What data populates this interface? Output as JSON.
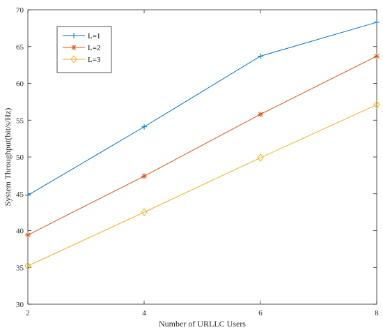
{
  "chart_data": {
    "type": "line",
    "xlabel": "Number of URLLC Users",
    "ylabel": "System Throughput(bit/s/Hz)",
    "x": [
      2,
      4,
      6,
      8
    ],
    "xlim": [
      2,
      8
    ],
    "ylim": [
      30,
      70
    ],
    "xticks": [
      "2",
      "4",
      "6",
      "8"
    ],
    "yticks": [
      "30",
      "35",
      "40",
      "45",
      "50",
      "55",
      "60",
      "65",
      "70"
    ],
    "grid": false,
    "legend_position": "top-left",
    "series": [
      {
        "name": "L=1",
        "values": [
          44.8,
          54.1,
          63.7,
          68.3
        ],
        "color": "#0072BD",
        "marker": "plus"
      },
      {
        "name": "L=2",
        "values": [
          39.4,
          47.4,
          55.8,
          63.7
        ],
        "color": "#D95319",
        "marker": "asterisk"
      },
      {
        "name": "L=3",
        "values": [
          35.2,
          42.5,
          49.9,
          57.1
        ],
        "color": "#EDB120",
        "marker": "diamond"
      }
    ]
  }
}
